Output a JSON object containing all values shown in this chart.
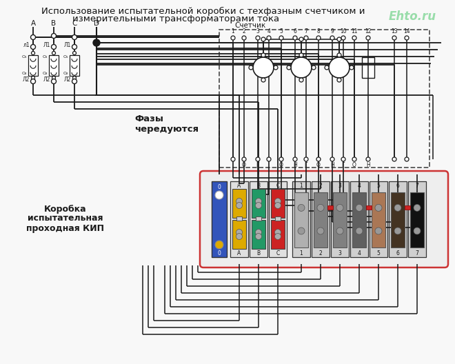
{
  "title_line1": "Использование испытательной коробки с техфазным счетчиком и",
  "title_line2": "измерительными трансформаторами тока",
  "watermark": "Ehto.ru",
  "label_schetchik": "Счетчик",
  "label_fazy": "Фазы\nчередуются",
  "label_korobka": "Коробка\nиспытательная\nпроходная КИП",
  "bg_color": "#f8f8f8",
  "line_color": "#1a1a1a",
  "kip_border_color": "#cc3333",
  "sc_border_color": "#555555",
  "col_blue": "#3355bb",
  "col_yellow": "#ddaa00",
  "col_green": "#229933",
  "col_red": "#cc2222",
  "col_gray1": "#b0b0b0",
  "col_gray2": "#808080",
  "col_gray3": "#606060",
  "col_brown": "#aa7755",
  "col_black2": "#222222",
  "watermark_color": "#99ddaa"
}
